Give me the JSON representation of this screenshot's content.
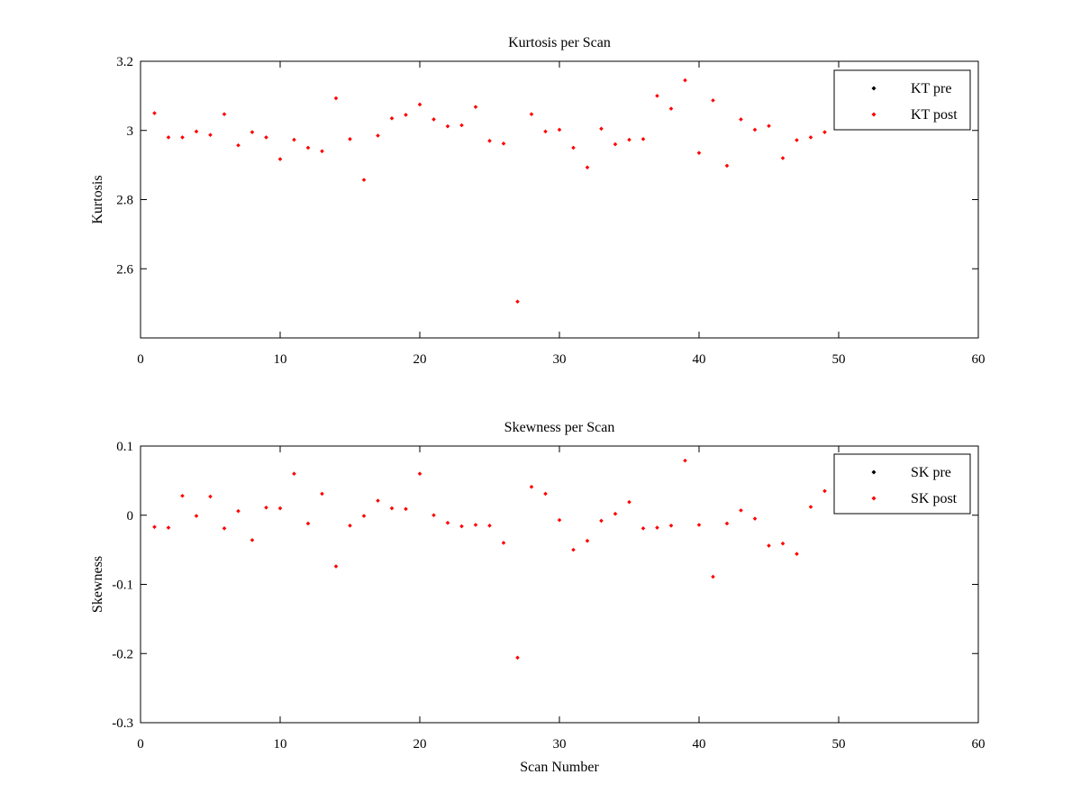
{
  "colors": {
    "pre": "#000000",
    "post": "#ff0000",
    "axis": "#000000",
    "background": "#ffffff"
  },
  "chart_data": [
    {
      "type": "scatter",
      "title": "Kurtosis per Scan",
      "xlabel": "",
      "ylabel": "Kurtosis",
      "xlim": [
        0,
        60
      ],
      "ylim": [
        2.4,
        3.2
      ],
      "xticks": [
        0,
        10,
        20,
        30,
        40,
        50,
        60
      ],
      "xtick_labels": [
        "0",
        "10",
        "20",
        "30",
        "40",
        "50",
        "60"
      ],
      "yticks": [
        2.6,
        2.8,
        3.0,
        3.2
      ],
      "ytick_labels": [
        "2.6",
        "2.8",
        "3",
        "3.2"
      ],
      "grid": false,
      "legend_position": "top-right",
      "series": [
        {
          "name": "KT pre",
          "color": "#000000",
          "x": [],
          "y": []
        },
        {
          "name": "KT post",
          "color": "#ff0000",
          "x": [
            1,
            2,
            3,
            4,
            5,
            6,
            7,
            8,
            9,
            10,
            11,
            12,
            13,
            14,
            15,
            16,
            17,
            18,
            19,
            20,
            21,
            22,
            23,
            24,
            25,
            26,
            27,
            28,
            29,
            30,
            31,
            32,
            33,
            34,
            35,
            36,
            37,
            38,
            39,
            40,
            41,
            42,
            43,
            44,
            45,
            46,
            47,
            48,
            49
          ],
          "y": [
            3.05,
            2.98,
            2.98,
            2.997,
            2.987,
            3.047,
            2.957,
            2.995,
            2.98,
            2.917,
            2.973,
            2.95,
            2.94,
            3.093,
            2.975,
            2.857,
            2.985,
            3.035,
            3.045,
            3.075,
            3.032,
            3.012,
            3.015,
            3.068,
            2.97,
            2.962,
            2.505,
            3.047,
            2.997,
            3.002,
            2.95,
            2.893,
            3.005,
            2.96,
            2.973,
            2.975,
            3.1,
            3.063,
            3.145,
            2.935,
            3.087,
            2.898,
            3.032,
            3.002,
            3.013,
            2.92,
            2.972,
            2.98,
            2.995
          ]
        }
      ]
    },
    {
      "type": "scatter",
      "title": "Skewness per Scan",
      "xlabel": "Scan Number",
      "ylabel": "Skewness",
      "xlim": [
        0,
        60
      ],
      "ylim": [
        -0.3,
        0.1
      ],
      "xticks": [
        0,
        10,
        20,
        30,
        40,
        50,
        60
      ],
      "xtick_labels": [
        "0",
        "10",
        "20",
        "30",
        "40",
        "50",
        "60"
      ],
      "yticks": [
        -0.3,
        -0.2,
        -0.1,
        0,
        0.1
      ],
      "ytick_labels": [
        "-0.3",
        "-0.2",
        "-0.1",
        "0",
        "0.1"
      ],
      "grid": false,
      "legend_position": "top-right",
      "series": [
        {
          "name": "SK pre",
          "color": "#000000",
          "x": [],
          "y": []
        },
        {
          "name": "SK post",
          "color": "#ff0000",
          "x": [
            1,
            2,
            3,
            4,
            5,
            6,
            7,
            8,
            9,
            10,
            11,
            12,
            13,
            14,
            15,
            16,
            17,
            18,
            19,
            20,
            21,
            22,
            23,
            24,
            25,
            26,
            27,
            28,
            29,
            30,
            31,
            32,
            33,
            34,
            35,
            36,
            37,
            38,
            39,
            40,
            41,
            42,
            43,
            44,
            45,
            46,
            47,
            48,
            49
          ],
          "y": [
            -0.017,
            -0.018,
            0.028,
            -0.001,
            0.027,
            -0.019,
            0.006,
            -0.036,
            0.011,
            0.01,
            0.06,
            -0.012,
            0.031,
            -0.074,
            -0.015,
            -0.001,
            0.021,
            0.01,
            0.009,
            0.06,
            0.0,
            -0.011,
            -0.016,
            -0.014,
            -0.015,
            -0.04,
            -0.206,
            0.041,
            0.031,
            -0.007,
            -0.05,
            -0.037,
            -0.008,
            0.002,
            0.019,
            -0.019,
            -0.018,
            -0.015,
            0.079,
            -0.014,
            -0.089,
            -0.012,
            0.007,
            -0.005,
            -0.044,
            -0.041,
            -0.056,
            0.012,
            0.035
          ]
        }
      ]
    }
  ]
}
